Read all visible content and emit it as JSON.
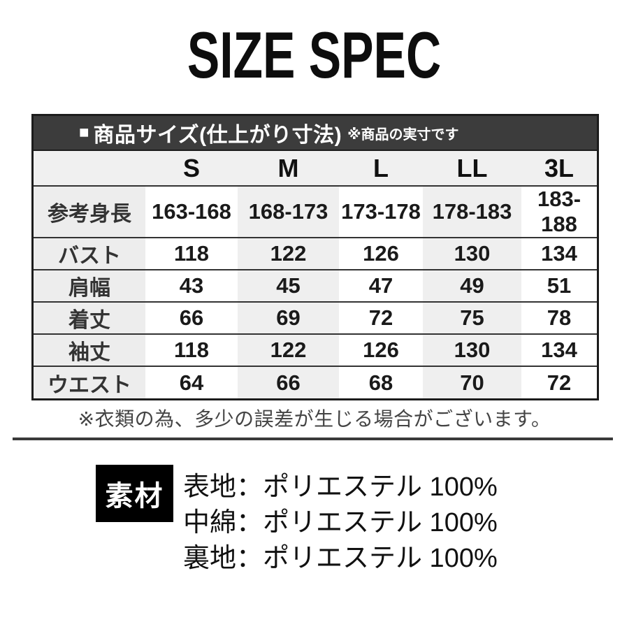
{
  "page": {
    "title": "SIZE SPEC"
  },
  "size_table": {
    "header_bar": {
      "bullet": "■",
      "title": "商品サイズ(仕上がり寸法)",
      "note": "※商品の実寸です"
    },
    "columns": {
      "s": "S",
      "m": "M",
      "l": "L",
      "ll": "LL",
      "xl3": "3L"
    },
    "rows": [
      {
        "label": "参考身長",
        "values": [
          "163-168",
          "168-173",
          "173-178",
          "178-183",
          "183-188"
        ]
      },
      {
        "label": "バスト",
        "values": [
          "118",
          "122",
          "126",
          "130",
          "134"
        ]
      },
      {
        "label": "肩幅",
        "values": [
          "43",
          "45",
          "47",
          "49",
          "51"
        ]
      },
      {
        "label": "着丈",
        "values": [
          "66",
          "69",
          "72",
          "75",
          "78"
        ]
      },
      {
        "label": "袖丈",
        "values": [
          "118",
          "122",
          "126",
          "130",
          "134"
        ]
      },
      {
        "label": "ウエスト",
        "values": [
          "64",
          "66",
          "68",
          "70",
          "72"
        ]
      }
    ]
  },
  "note": "※衣類の為、多少の誤差が生じる場合がございます。",
  "material": {
    "label": "素材",
    "lines": {
      "outer": "表地：ポリエステル 100%",
      "padding": "中綿：ポリエステル 100%",
      "lining": "裏地：ポリエステル 100%"
    }
  },
  "colors": {
    "header_bar": "#3c3c3c",
    "header_row": "#f0f0f0",
    "stripe_column": "#efefef",
    "label_column": "#ededed",
    "border": "#1c1c1c",
    "material_box": "#000000"
  }
}
